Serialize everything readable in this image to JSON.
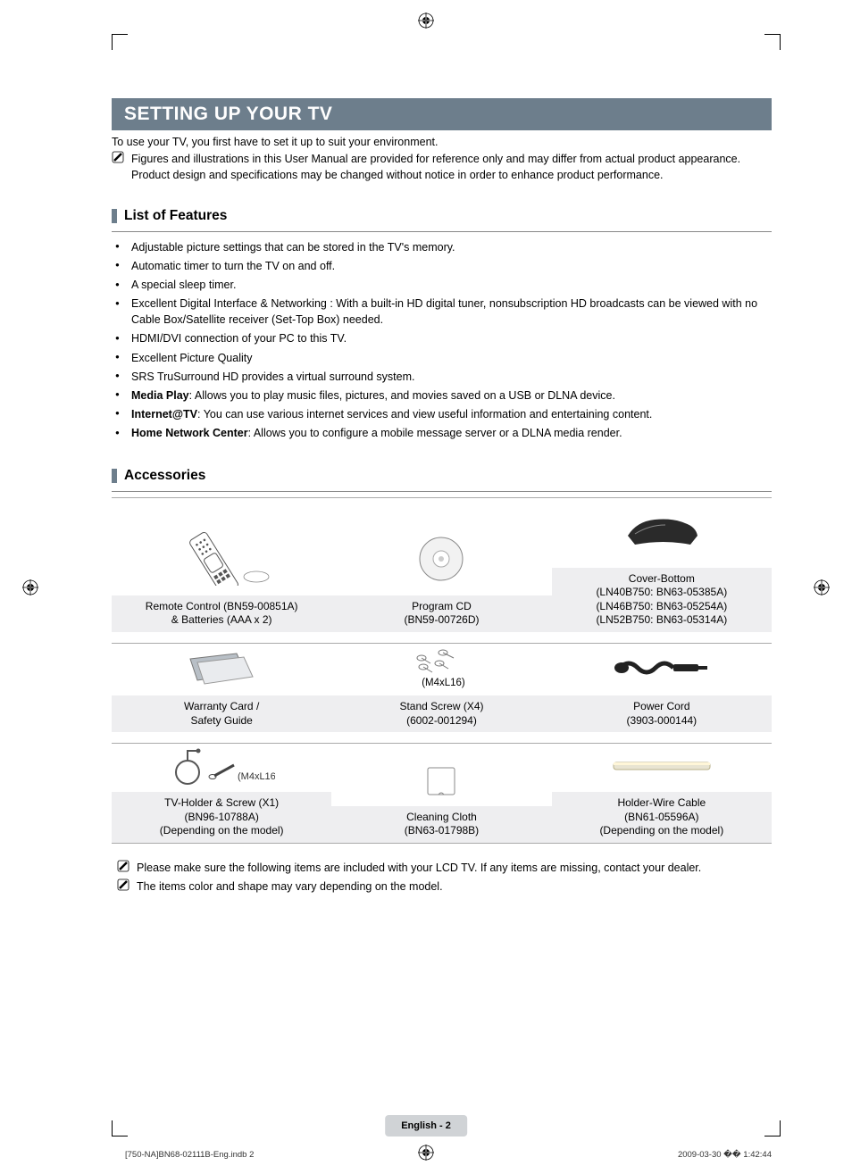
{
  "colors": {
    "bar_bg": "#6d7e8c",
    "label_bg": "#eeeef0",
    "page_label_bg": "#d0d3d6"
  },
  "heading": "SETTING UP YOUR TV",
  "intro": "To use your TV, you first have to set it up to suit your environment.",
  "note_top": "Figures and illustrations in this User Manual are provided for reference only and may differ from actual product appearance. Product design and specifications may be changed without notice in order to enhance product performance.",
  "features_title": "List of Features",
  "features": [
    "Adjustable picture settings that can be stored in the TV's memory.",
    "Automatic timer to turn the TV on and off.",
    "A special sleep timer.",
    "Excellent Digital Interface & Networking : With a built-in HD digital tuner, nonsubscription HD broadcasts can be viewed with no Cable Box/Satellite receiver (Set-Top Box) needed.",
    "HDMI/DVI connection of your PC to this TV.",
    "Excellent Picture Quality",
    "SRS TruSurround HD provides a virtual surround system."
  ],
  "features_rich": [
    {
      "bold": "Media Play",
      "rest": ": Allows you to play music files, pictures, and movies saved on a USB or DLNA device."
    },
    {
      "bold": "Internet@TV",
      "rest": ": You can use various internet services and view useful information and entertaining content."
    },
    {
      "bold": "Home Network Center",
      "rest": ": Allows you to configure a mobile message server or a DLNA media render."
    }
  ],
  "accessories_title": "Accessories",
  "acc_rows": [
    {
      "sub_mid": "(M4xL16)",
      "cells": [
        "Remote Control (BN59-00851A)\n& Batteries (AAA x 2)",
        "Program CD\n(BN59-00726D)",
        "Cover-Bottom\n(LN40B750: BN63-05385A)\n(LN46B750: BN63-05254A)\n(LN52B750: BN63-05314A)"
      ]
    },
    {
      "sub_left": "",
      "cells": [
        "Warranty Card /\nSafety Guide",
        "Stand Screw (X4)\n(6002-001294)",
        "Power Cord\n(3903-000144)"
      ]
    },
    {
      "sub_left": "(M4xL16)",
      "cells": [
        "TV-Holder & Screw (X1)\n(BN96-10788A)\n(Depending on the model)",
        "Cleaning Cloth\n(BN63-01798B)",
        "Holder-Wire Cable\n(BN61-05596A)\n(Depending on the model)"
      ]
    }
  ],
  "foot_notes": [
    "Please make sure the following items are included with your LCD TV. If any items are missing, contact your dealer.",
    "The items color and shape may vary depending on the model."
  ],
  "page_label": "English - 2",
  "doc_foot_left": "[750-NA]BN68-02111B-Eng.indb   2",
  "doc_foot_right": "2009-03-30   �� 1:42:44"
}
